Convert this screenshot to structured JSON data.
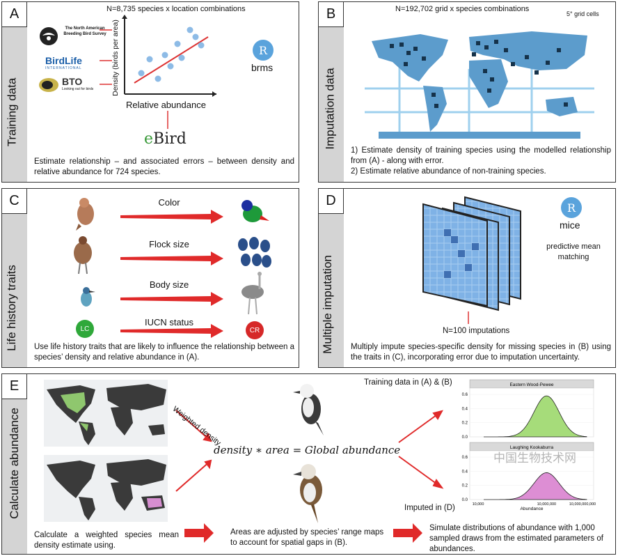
{
  "panel_a": {
    "letter": "A",
    "side_label": "Training data",
    "header": "N=8,735  species x location combinations",
    "y_axis": "Density (birds per area)",
    "x_axis": "Relative abundance",
    "logo_nabbs": "The North American Breeding Bird Survey",
    "logo_birdlife": "BirdLife",
    "logo_birdlife_sub": "INTERNATIONAL",
    "logo_bto": "BTO",
    "logo_bto_sub": "Looking out for birds",
    "r_symbol": "R",
    "r_package": "brms",
    "ebird_e": "e",
    "ebird_bird": "Bird",
    "caption": "Estimate relationship – and associated errors – between density and relative abundance for 724 species."
  },
  "panel_b": {
    "letter": "B",
    "side_label": "Imputation data",
    "header": "N=192,702 grid x species combinations",
    "grid_note": "5° grid cells",
    "caption_1": "1) Estimate density of training species using the modelled relationship from (A) - along with error.",
    "caption_2": "2) Estimate relative abundance of non-training species."
  },
  "panel_c": {
    "letter": "C",
    "side_label": "Life history traits",
    "traits": [
      "Color",
      "Flock size",
      "Body size",
      "IUCN status"
    ],
    "lc": "LC",
    "cr": "CR",
    "caption": "Use life history traits that are likely to influence the relationship between a species’ density and relative abundance in (A)."
  },
  "panel_d": {
    "letter": "D",
    "side_label": "Multiple imputation",
    "r_symbol": "R",
    "r_package": "mice",
    "method": "predictive mean matching",
    "imputations": "N=100 imputations",
    "caption": "Multiply impute species-specific density for missing species in (B) using the traits in (C), incorporating error due to imputation uncertainty."
  },
  "panel_e": {
    "letter": "E",
    "side_label": "Calculate abundance",
    "weighted": "Weighted density",
    "equation": "density ∗ area = Global abundance",
    "training_label": "Training data in (A) & (B)",
    "imputed_label": "Imputed in (D)",
    "step1": "Calculate a weighted species mean density estimate using.",
    "step2": "Areas are adjusted by species’ range maps to account for spatial gaps in (B).",
    "step3": "Simulate distributions of abundance with 1,000 sampled draws from the estimated parameters of abundances.",
    "watermark": "中国生物技术网"
  },
  "chart_data": [
    {
      "type": "area",
      "title": "Eastern Wood-Pewee",
      "color": "#a6dc7a",
      "y_ticks": [
        "0.0",
        "0.2",
        "0.4",
        "0.6"
      ],
      "ylim": [
        0,
        0.65
      ],
      "peak_density": 0.58
    },
    {
      "type": "area",
      "title": "Laughing Kookaburra",
      "color": "#dd8ed4",
      "y_ticks": [
        "0.0",
        "0.2",
        "0.4",
        "0.6"
      ],
      "ylim": [
        0,
        0.65
      ],
      "peak_density": 0.38,
      "x_ticks": [
        "10,000",
        "10,000,000",
        "10,000,000,000"
      ],
      "xlabel": "Abundance"
    }
  ]
}
